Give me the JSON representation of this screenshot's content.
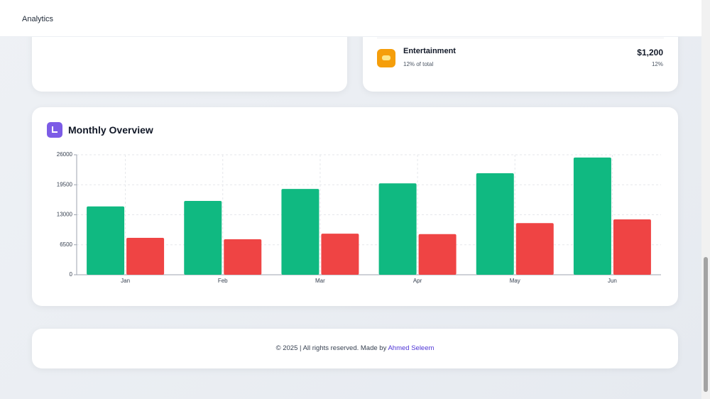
{
  "header": {
    "title": "Analytics"
  },
  "summary": {
    "category": {
      "name": "Entertainment",
      "subtitle": "12% of total",
      "amount": "$1,200",
      "share": "12%"
    }
  },
  "chart_data": {
    "type": "bar",
    "title": "Monthly Overview",
    "categories": [
      "Jan",
      "Feb",
      "Mar",
      "Apr",
      "May",
      "Jun"
    ],
    "series": [
      {
        "color": "#10b981",
        "values": [
          14800,
          16000,
          18600,
          19800,
          22000,
          25400
        ]
      },
      {
        "color": "#ef4444",
        "values": [
          8000,
          7700,
          8900,
          8800,
          11200,
          12000
        ]
      }
    ],
    "ylim": [
      0,
      26000
    ],
    "yticks": [
      0,
      6500,
      13000,
      19500,
      26000
    ],
    "grid": true
  },
  "footer": {
    "text": "© 2025 | All rights reserved. Made by",
    "author": "Ahmed Seleem"
  }
}
